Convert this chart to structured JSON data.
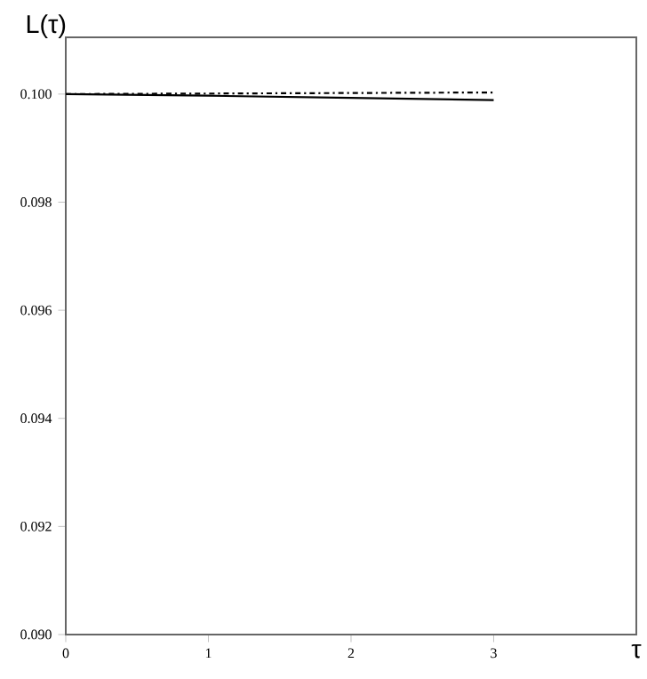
{
  "chart_data": {
    "type": "line",
    "xlabel": "τ",
    "ylabel": "L(τ)",
    "xlim": [
      0,
      4
    ],
    "ylim": [
      0.09,
      0.10105
    ],
    "xticks": [
      0,
      1,
      2,
      3
    ],
    "yticks": [
      {
        "value": 0.09,
        "label": "0.090"
      },
      {
        "value": 0.092,
        "label": "0.092"
      },
      {
        "value": 0.094,
        "label": "0.094"
      },
      {
        "value": 0.096,
        "label": "0.096"
      },
      {
        "value": 0.098,
        "label": "0.098"
      },
      {
        "value": 0.1,
        "label": "0.100"
      }
    ],
    "series": [
      {
        "color": "#000000",
        "line_style": "solid",
        "x": [
          0,
          1,
          2,
          3
        ],
        "values": [
          0.1,
          0.09997,
          0.09993,
          0.09989
        ]
      },
      {
        "color": "#000000",
        "line_style": "dashdot",
        "x": [
          0,
          1,
          2,
          3
        ],
        "values": [
          0.1,
          0.10001,
          0.10002,
          0.10003
        ]
      }
    ]
  }
}
